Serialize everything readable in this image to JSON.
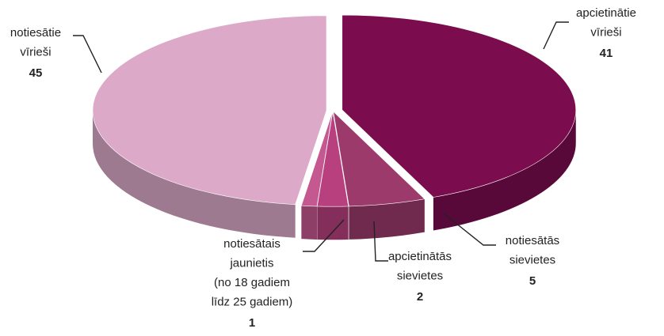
{
  "chart_data": {
    "type": "pie3d",
    "categories": [
      [
        "apcietinātie",
        "vīrieši"
      ],
      [
        "notiesātās",
        "sievietes"
      ],
      [
        "apcietinātās",
        "sievietes"
      ],
      [
        "notiesātais",
        "jaunietis",
        "(no 18 gadiem",
        "līdz 25 gadiem)"
      ],
      [
        "notiesātie",
        "vīrieši"
      ]
    ],
    "values": [
      41,
      5,
      2,
      1,
      45
    ],
    "colors": [
      "#7b0d4f",
      "#9c3a6c",
      "#b8407f",
      "#c45891",
      "#dcaac8"
    ]
  }
}
